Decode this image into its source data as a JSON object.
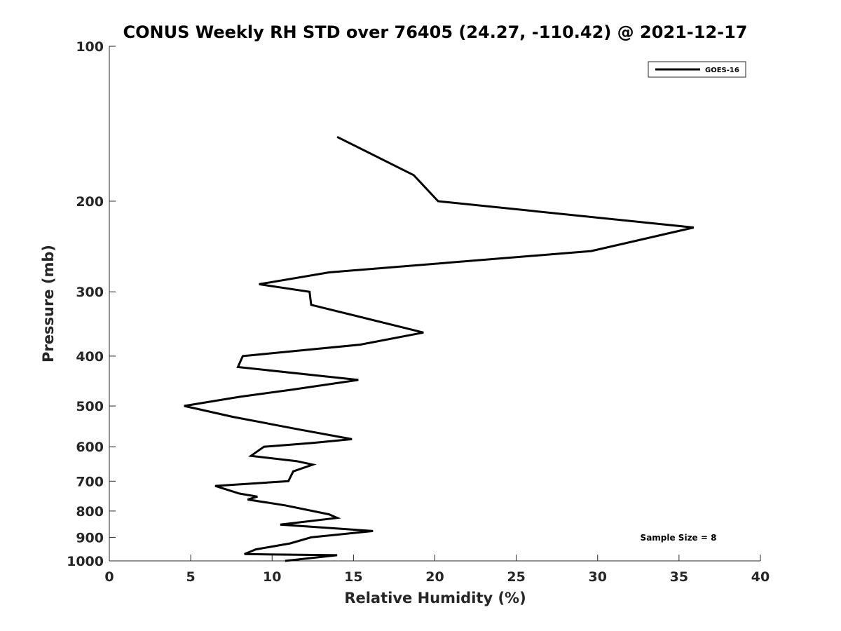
{
  "chart_data": {
    "type": "line",
    "title": "CONUS Weekly RH STD over 76405 (24.27, -110.42) @ 2021-12-17",
    "xlabel": "Relative Humidity (%)",
    "ylabel": "Pressure (mb)",
    "xlim": [
      0,
      40
    ],
    "ylim": [
      100,
      1000
    ],
    "y_scale": "log",
    "y_reversed": true,
    "x_ticks": [
      0,
      5,
      10,
      15,
      20,
      25,
      30,
      35,
      40
    ],
    "y_ticks": [
      100,
      200,
      300,
      400,
      500,
      600,
      700,
      800,
      900,
      1000
    ],
    "grid": false,
    "legend_position": "top-right",
    "annotation": "Sample Size = 8",
    "series": [
      {
        "name": "GOES-16",
        "color": "#000000",
        "points": [
          [
            14.0,
            150
          ],
          [
            18.7,
            178
          ],
          [
            20.2,
            200
          ],
          [
            35.9,
            225
          ],
          [
            29.6,
            250
          ],
          [
            13.5,
            275
          ],
          [
            9.2,
            290
          ],
          [
            12.3,
            300
          ],
          [
            12.4,
            318
          ],
          [
            19.3,
            360
          ],
          [
            15.4,
            380
          ],
          [
            8.2,
            400
          ],
          [
            7.9,
            420
          ],
          [
            15.3,
            445
          ],
          [
            11.2,
            465
          ],
          [
            8.0,
            480
          ],
          [
            4.6,
            500
          ],
          [
            7.6,
            525
          ],
          [
            11.6,
            555
          ],
          [
            14.9,
            580
          ],
          [
            12.5,
            590
          ],
          [
            9.5,
            600
          ],
          [
            8.7,
            625
          ],
          [
            11.5,
            640
          ],
          [
            12.5,
            650
          ],
          [
            11.3,
            670
          ],
          [
            11.0,
            700
          ],
          [
            6.5,
            715
          ],
          [
            8.0,
            740
          ],
          [
            9.1,
            750
          ],
          [
            8.5,
            760
          ],
          [
            10.8,
            780
          ],
          [
            13.5,
            812
          ],
          [
            14.0,
            825
          ],
          [
            10.5,
            850
          ],
          [
            16.2,
            875
          ],
          [
            12.4,
            900
          ],
          [
            11.1,
            925
          ],
          [
            9.0,
            950
          ],
          [
            8.3,
            970
          ],
          [
            14.0,
            975
          ],
          [
            10.8,
            1000
          ]
        ]
      }
    ]
  }
}
